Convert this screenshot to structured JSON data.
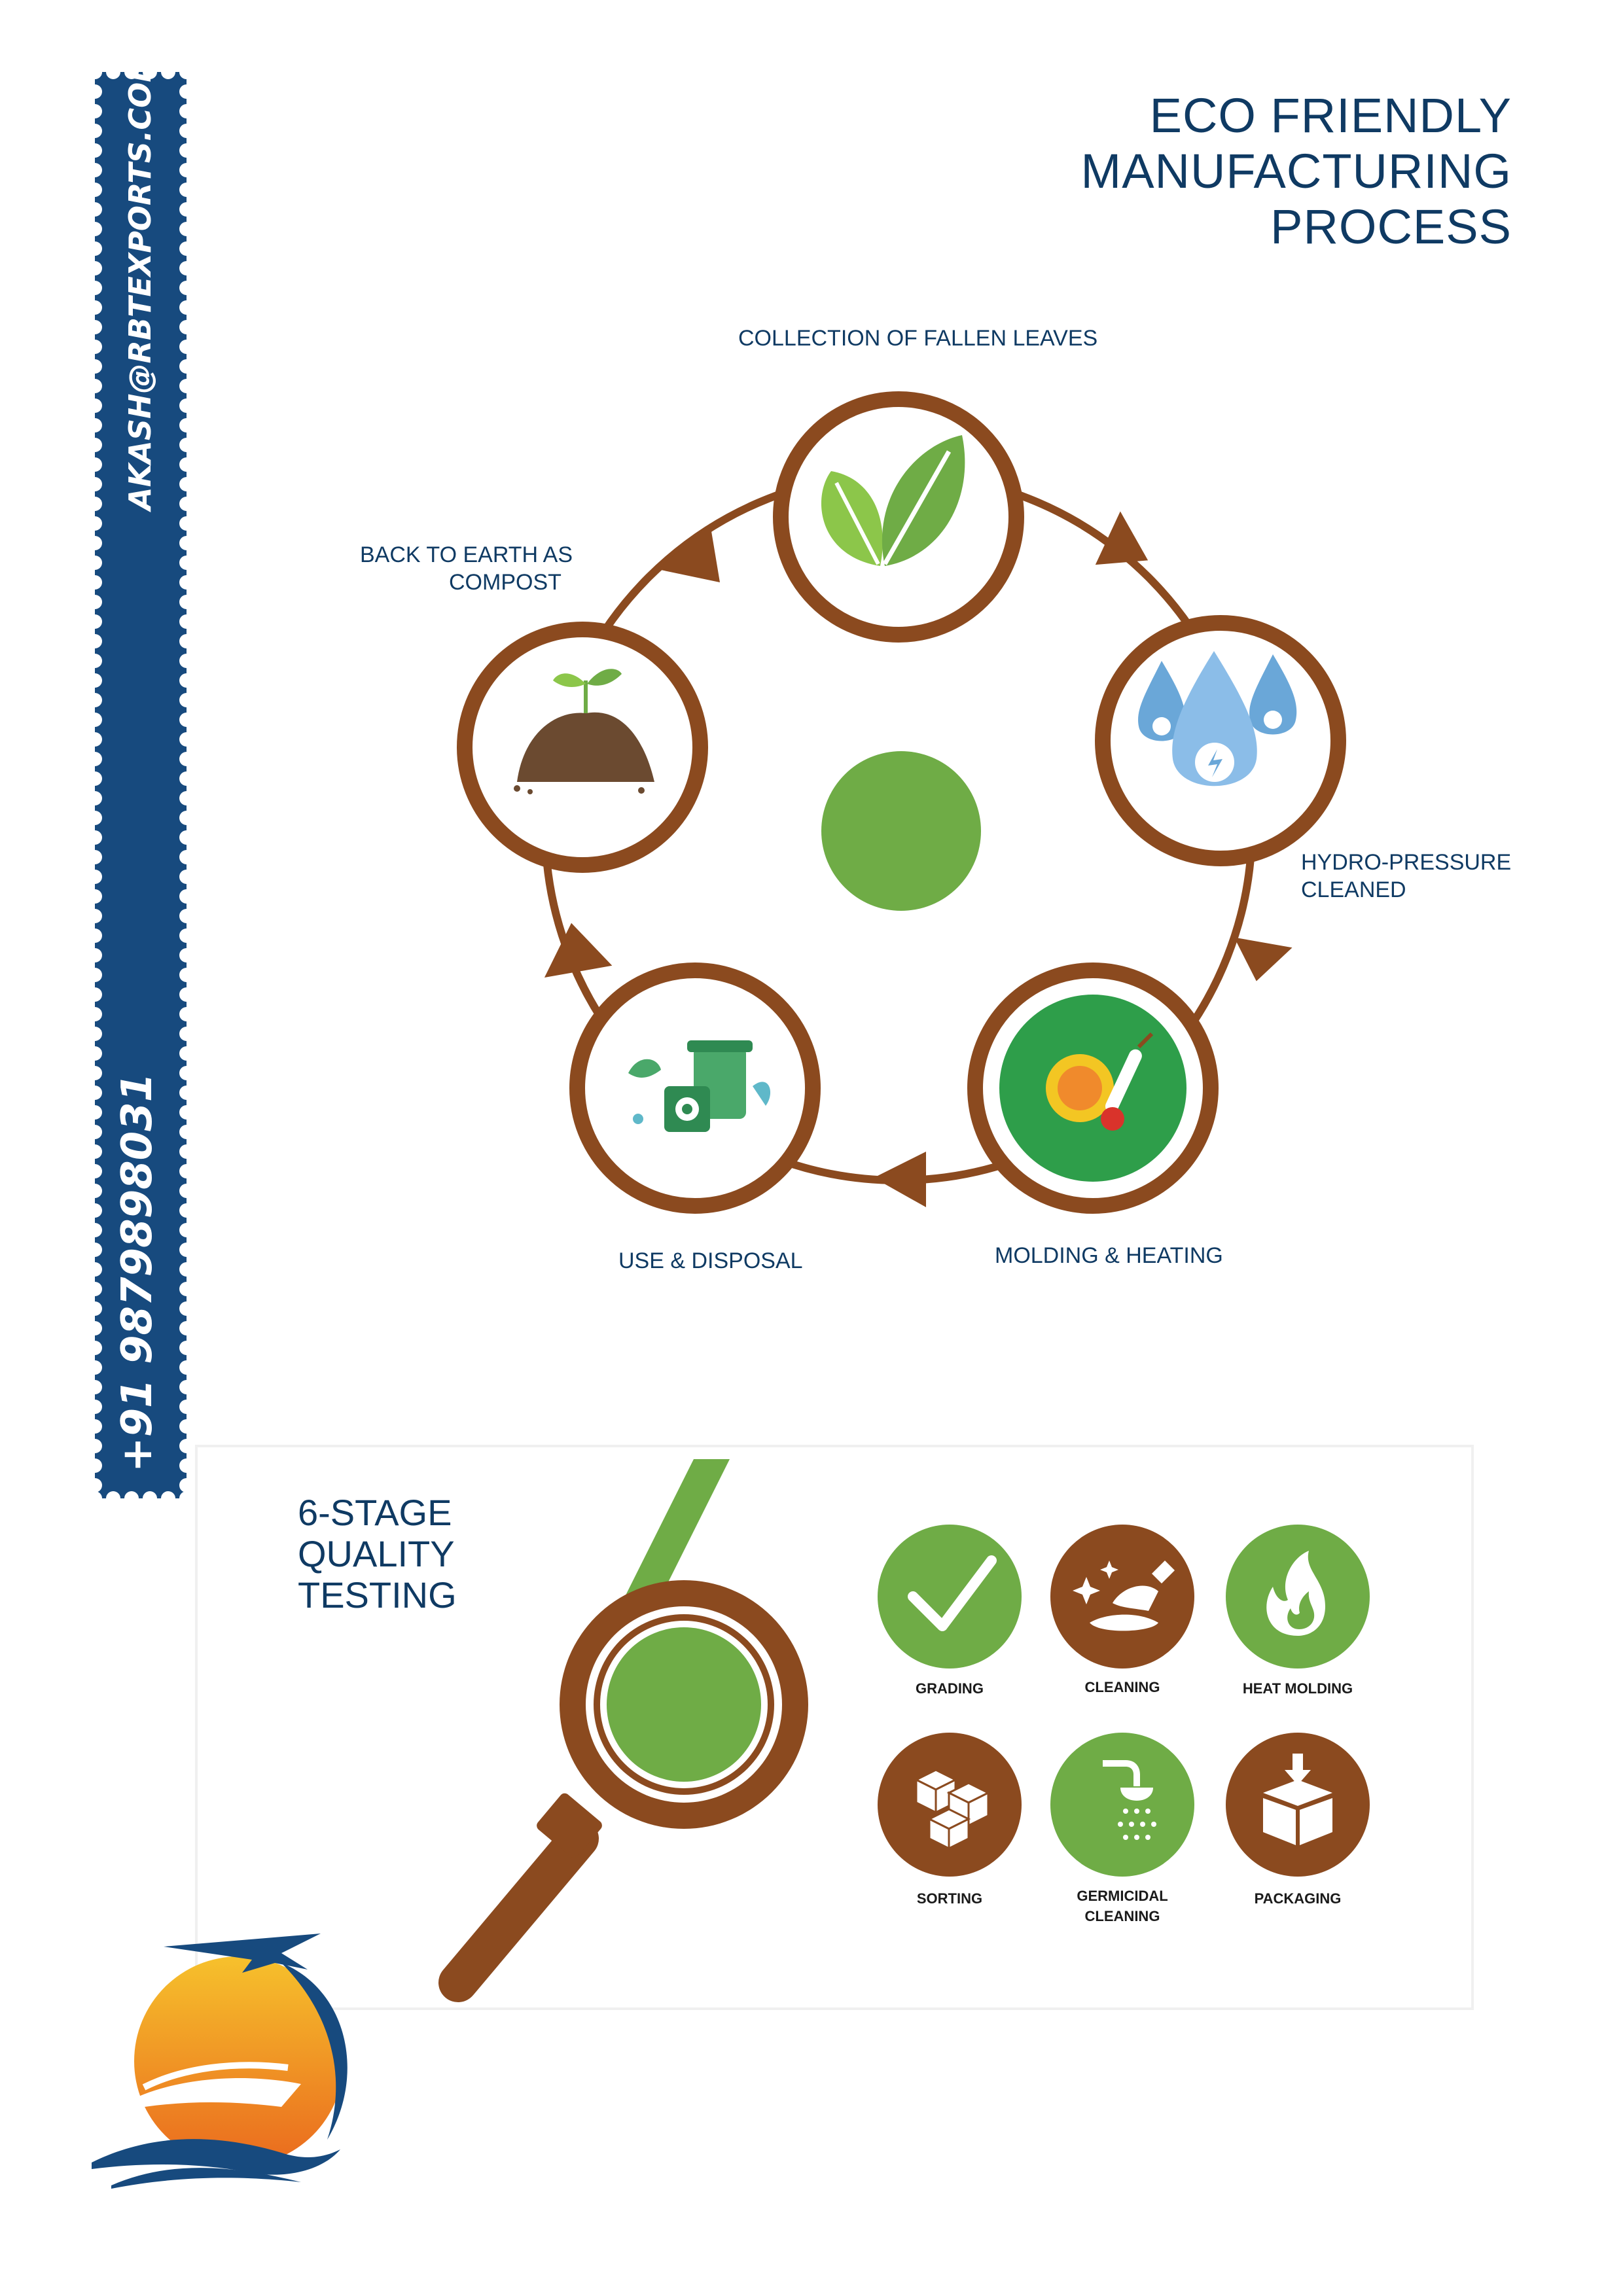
{
  "sidebar": {
    "email": "AKASH@RBTEXPORTS.COM",
    "phone": "+91 9879898031",
    "color": "#174a7e"
  },
  "header": {
    "title_lines": [
      "ECO FRIENDLY",
      "MANUFACTURING",
      "PROCESS"
    ]
  },
  "cycle": {
    "colors": {
      "ring": "#8b4a1f",
      "center": "#6fac46"
    },
    "steps": [
      {
        "label_lines": [
          "COLLECTION OF FALLEN LEAVES"
        ],
        "icon": "leaves-icon"
      },
      {
        "label_lines": [
          "HYDRO-PRESSURE",
          "CLEANED"
        ],
        "icon": "water-drops-icon"
      },
      {
        "label_lines": [
          "MOLDING & HEATING"
        ],
        "icon": "sun-thermometer-icon"
      },
      {
        "label_lines": [
          "USE & DISPOSAL"
        ],
        "icon": "recycle-bin-icon"
      },
      {
        "label_lines": [
          "BACK TO EARTH AS",
          "COMPOST"
        ],
        "icon": "soil-sprout-icon"
      }
    ]
  },
  "quality": {
    "title_lines": [
      "6-STAGE",
      "QUALITY",
      "TESTING"
    ],
    "colors": {
      "green": "#6fac46",
      "brown": "#8b4a1f"
    },
    "stages": [
      {
        "label_lines": [
          "GRADING"
        ],
        "icon": "checkmark-icon"
      },
      {
        "label_lines": [
          "CLEANING"
        ],
        "icon": "sparkle-cleaning-icon"
      },
      {
        "label_lines": [
          "HEAT MOLDING"
        ],
        "icon": "flame-icon"
      },
      {
        "label_lines": [
          "SORTING"
        ],
        "icon": "boxes-icon"
      },
      {
        "label_lines": [
          "GERMICIDAL",
          "CLEANING"
        ],
        "icon": "shower-icon"
      },
      {
        "label_lines": [
          "PACKAGING"
        ],
        "icon": "open-box-icon"
      }
    ]
  },
  "logo": {
    "icon": "sun-ship-plane-logo"
  }
}
